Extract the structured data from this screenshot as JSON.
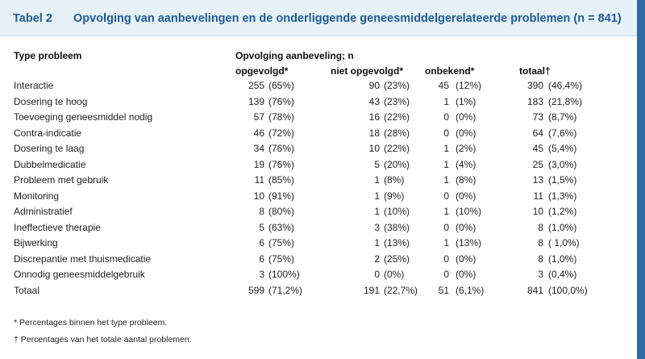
{
  "header": {
    "label": "Tabel 2",
    "title": "Opvolging van aanbevelingen en de onderliggende geneesmiddelgerelateerde problemen (n = 841)"
  },
  "columns": {
    "type": "Type probleem",
    "group": "Opvolging aanbeveling; n",
    "followed": "opgevolgd*",
    "not_followed": "niet opgevolgd*",
    "unknown": "onbekend*",
    "total": "totaal†"
  },
  "rows": [
    {
      "type": "Interactie",
      "f_n": "255",
      "f_p": "(65%)",
      "nf_n": "90",
      "nf_p": "(23%)",
      "u_n": "45",
      "u_p": "(12%)",
      "t_n": "390",
      "t_p": "(46,4%)"
    },
    {
      "type": "Dosering te hoog",
      "f_n": "139",
      "f_p": "(76%)",
      "nf_n": "43",
      "nf_p": "(23%)",
      "u_n": "1",
      "u_p": "(1%)",
      "t_n": "183",
      "t_p": "(21,8%)"
    },
    {
      "type": "Toevoeging geneesmiddel nodig",
      "f_n": "57",
      "f_p": "(78%)",
      "nf_n": "16",
      "nf_p": "(22%)",
      "u_n": "0",
      "u_p": "(0%)",
      "t_n": "73",
      "t_p": "(8,7%)"
    },
    {
      "type": "Contra-indicatie",
      "f_n": "46",
      "f_p": "(72%)",
      "nf_n": "18",
      "nf_p": "(28%)",
      "u_n": "0",
      "u_p": "(0%)",
      "t_n": "64",
      "t_p": "(7,6%)"
    },
    {
      "type": "Dosering te laag",
      "f_n": "34",
      "f_p": "(76%)",
      "nf_n": "10",
      "nf_p": "(22%)",
      "u_n": "1",
      "u_p": "(2%)",
      "t_n": "45",
      "t_p": "(5,4%)"
    },
    {
      "type": "Dubbelmedicatie",
      "f_n": "19",
      "f_p": "(76%)",
      "nf_n": "5",
      "nf_p": "(20%)",
      "u_n": "1",
      "u_p": "(4%)",
      "t_n": "25",
      "t_p": "(3,0%)"
    },
    {
      "type": "Probleem met gebruik",
      "f_n": "11",
      "f_p": "(85%)",
      "nf_n": "1",
      "nf_p": "(8%)",
      "u_n": "1",
      "u_p": "(8%)",
      "t_n": "13",
      "t_p": "(1,5%)"
    },
    {
      "type": "Monitoring",
      "f_n": "10",
      "f_p": "(91%)",
      "nf_n": "1",
      "nf_p": "(9%)",
      "u_n": "0",
      "u_p": "(0%)",
      "t_n": "11",
      "t_p": "(1,3%)"
    },
    {
      "type": "Administratief",
      "f_n": "8",
      "f_p": "(80%)",
      "nf_n": "1",
      "nf_p": "(10%)",
      "u_n": "1",
      "u_p": "(10%)",
      "t_n": "10",
      "t_p": "(1,2%)"
    },
    {
      "type": "Ineffectieve therapie",
      "f_n": "5",
      "f_p": "(63%)",
      "nf_n": "3",
      "nf_p": "(38%)",
      "u_n": "0",
      "u_p": "(0%)",
      "t_n": "8",
      "t_p": "(1,0%)"
    },
    {
      "type": "Bijwerking",
      "f_n": "6",
      "f_p": "(75%)",
      "nf_n": "1",
      "nf_p": "(13%)",
      "u_n": "1",
      "u_p": "(13%)",
      "t_n": "8",
      "t_p": "( 1,0%)"
    },
    {
      "type": "Discrepantie met thuismedicatie",
      "f_n": "6",
      "f_p": "(75%)",
      "nf_n": "2",
      "nf_p": "(25%)",
      "u_n": "0",
      "u_p": "(0%)",
      "t_n": "8",
      "t_p": "(1,0%)"
    },
    {
      "type": "Onnodig geneesmiddelgebruik",
      "f_n": "3",
      "f_p": "(100%)",
      "nf_n": "0",
      "nf_p": "(0%)",
      "u_n": "0",
      "u_p": "(0%)",
      "t_n": "3",
      "t_p": "(0,4%)"
    },
    {
      "type": "Totaal",
      "f_n": "599",
      "f_p": "(71,2%)",
      "nf_n": "191",
      "nf_p": "(22,7%)",
      "u_n": "51",
      "u_p": "(6,1%)",
      "t_n": "841",
      "t_p": "(100,0%)"
    }
  ],
  "footnotes": {
    "star": "* Percentages binnen het type probleem.",
    "dagger": "† Percentages van het totale aantal problemen."
  },
  "colors": {
    "title": "#1f5a96",
    "header_bg": "#e6f1f8",
    "edge": "#2f6aa3"
  }
}
